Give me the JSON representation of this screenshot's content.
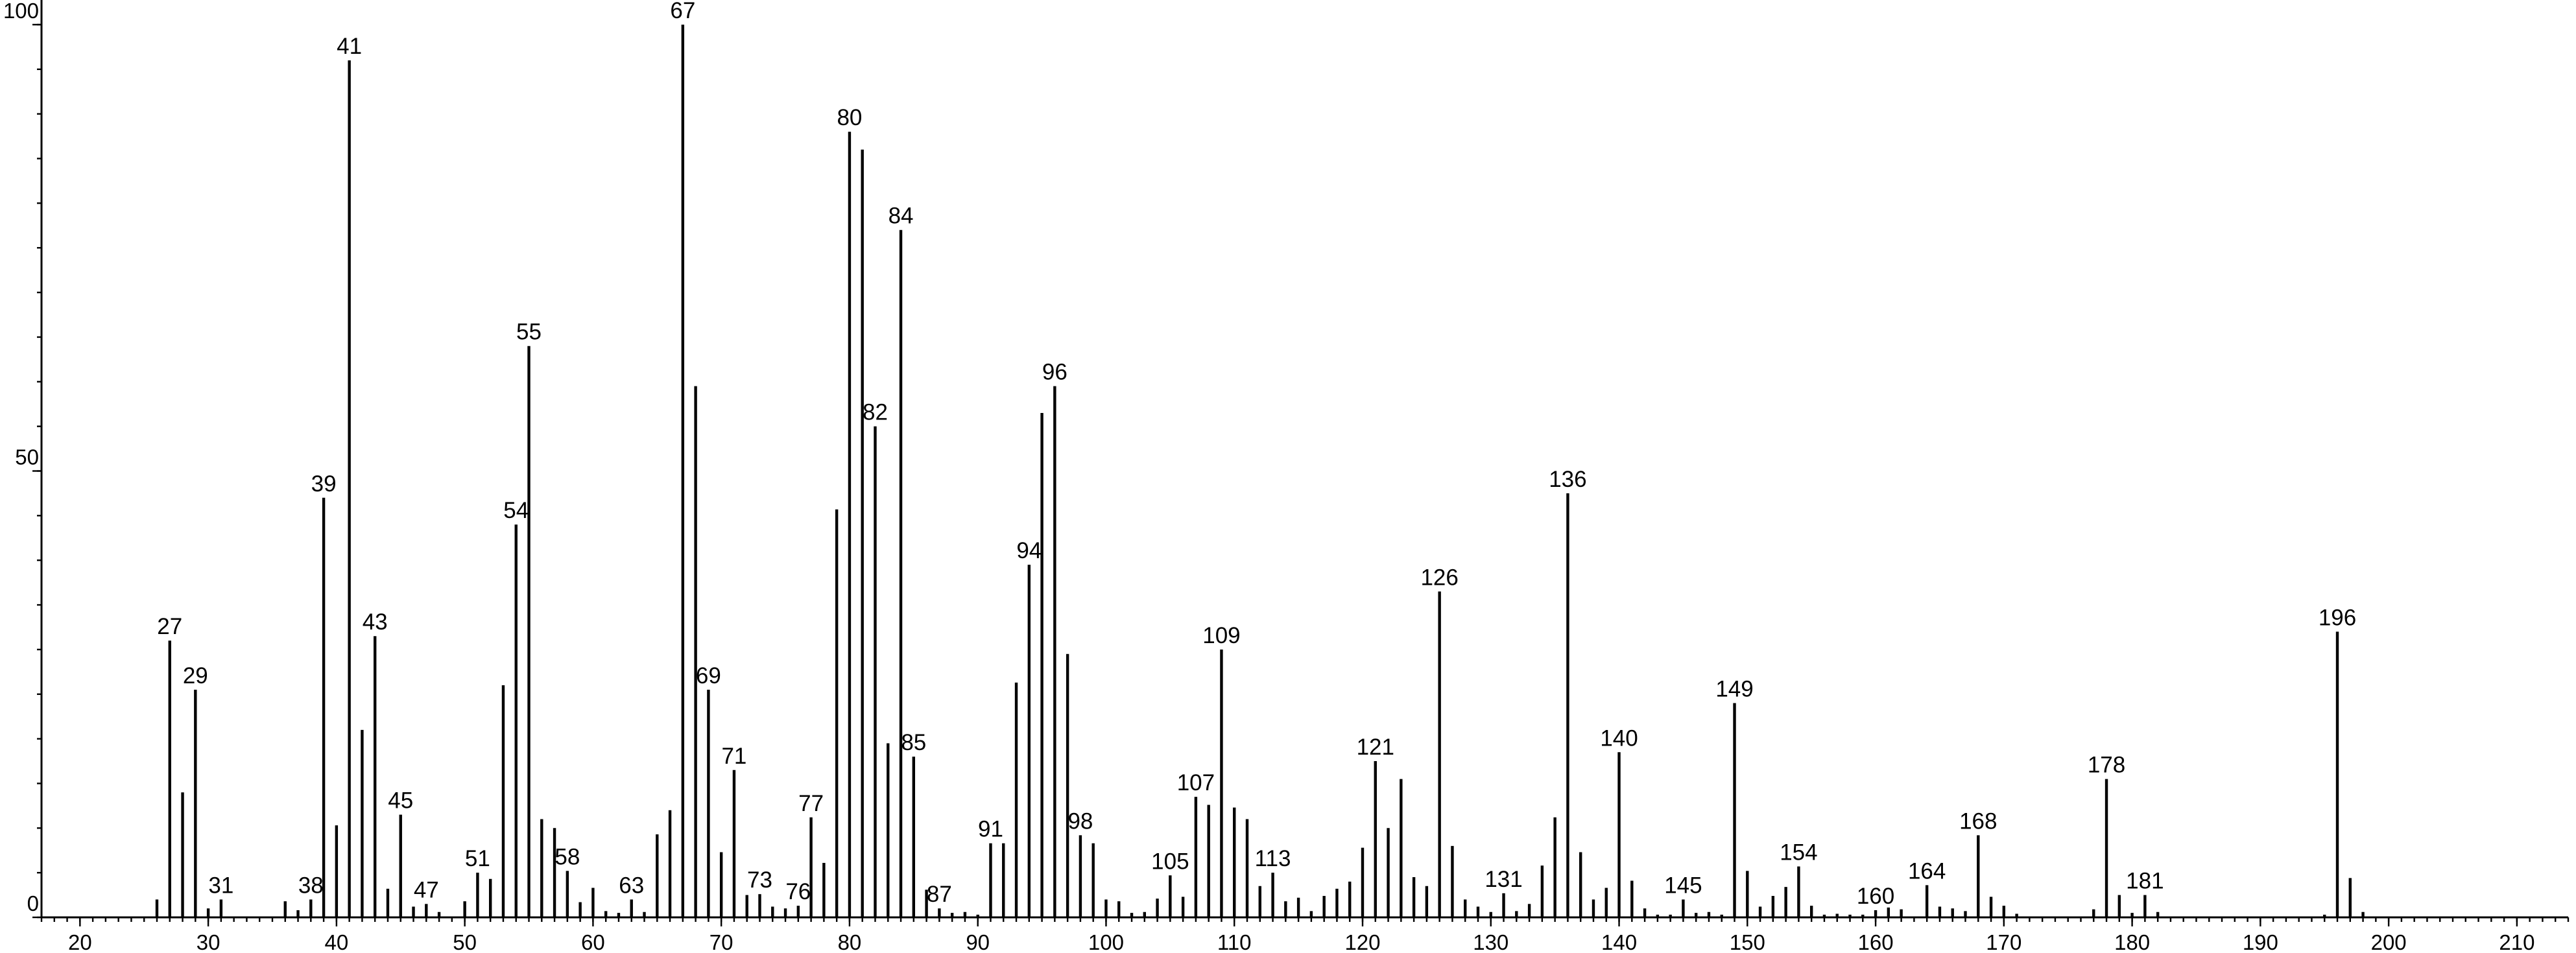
{
  "chart_data": {
    "type": "bar",
    "title": "",
    "xlabel": "",
    "ylabel": "",
    "xlim": [
      17,
      214
    ],
    "ylim": [
      0,
      100
    ],
    "x_ticks": [
      20,
      30,
      40,
      50,
      60,
      70,
      80,
      90,
      100,
      110,
      120,
      130,
      140,
      150,
      160,
      170,
      180,
      190,
      200,
      210
    ],
    "y_ticks": [
      0,
      50,
      100
    ],
    "y_tick_labels": [
      "0",
      "50",
      "100"
    ],
    "grid": false,
    "legend": "none",
    "series": [
      {
        "x": [
          26,
          27,
          28,
          29,
          30,
          31,
          36,
          37,
          38,
          39,
          40,
          41,
          42,
          43,
          44,
          45,
          46,
          47,
          48,
          50,
          51,
          52,
          53,
          54,
          55,
          56,
          57,
          58,
          59,
          60,
          61,
          62,
          63,
          64,
          65,
          66,
          67,
          68,
          69,
          70,
          71,
          72,
          73,
          74,
          75,
          76,
          77,
          78,
          79,
          80,
          81,
          82,
          83,
          84,
          85,
          86,
          87,
          88,
          89,
          90,
          91,
          92,
          93,
          94,
          95,
          96,
          97,
          98,
          99,
          100,
          101,
          102,
          103,
          104,
          105,
          106,
          107,
          108,
          109,
          110,
          111,
          112,
          113,
          114,
          115,
          116,
          117,
          118,
          119,
          120,
          121,
          122,
          123,
          124,
          125,
          126,
          127,
          128,
          129,
          130,
          131,
          132,
          133,
          134,
          135,
          136,
          137,
          138,
          139,
          140,
          141,
          142,
          143,
          144,
          145,
          146,
          147,
          148,
          149,
          150,
          151,
          152,
          153,
          154,
          155,
          156,
          157,
          158,
          159,
          160,
          161,
          162,
          164,
          165,
          166,
          167,
          168,
          169,
          170,
          171,
          177,
          178,
          179,
          180,
          181,
          182,
          195,
          196,
          197,
          198
        ],
        "values": [
          2,
          31,
          14,
          25.5,
          1,
          2,
          1.8,
          0.8,
          2,
          47,
          10.3,
          96,
          21,
          31.5,
          3.2,
          11.5,
          1.2,
          1.5,
          0.6,
          1.8,
          5,
          4.3,
          26,
          44,
          64,
          11,
          10,
          5.2,
          1.7,
          3.3,
          0.7,
          0.5,
          2,
          0.6,
          9.3,
          12,
          100,
          59.5,
          25.5,
          7.3,
          16.5,
          2.5,
          2.6,
          1.2,
          1,
          1.3,
          11.2,
          6.1,
          45.7,
          88,
          86,
          55,
          19.5,
          77,
          18,
          3.1,
          1,
          0.5,
          0.6,
          0.3,
          8.3,
          8.3,
          26.3,
          39.5,
          56.5,
          59.5,
          29.5,
          9.2,
          8.3,
          2,
          1.8,
          0.5,
          0.6,
          2.1,
          4.7,
          2.3,
          13.5,
          12.6,
          30,
          12.3,
          11,
          3.5,
          5,
          1.8,
          2.2,
          0.7,
          2.4,
          3.2,
          4,
          7.8,
          17.5,
          10,
          15.5,
          4.5,
          3.5,
          36.5,
          8,
          2,
          1.2,
          0.6,
          2.7,
          0.7,
          1.5,
          5.8,
          11.2,
          47.5,
          7.3,
          2,
          3.3,
          18.5,
          4.1,
          1,
          0.3,
          0.3,
          2,
          0.5,
          0.6,
          0.3,
          24,
          5.2,
          1.2,
          2.4,
          3.4,
          5.7,
          1.3,
          0.3,
          0.4,
          0.3,
          0.3,
          0.8,
          1.1,
          0.9,
          3.6,
          1.2,
          1,
          0.7,
          9.2,
          2.3,
          1.3,
          0.4,
          0.9,
          15.5,
          2.5,
          0.5,
          2.5,
          0.6,
          0.3,
          32,
          4.4,
          0.6
        ]
      }
    ],
    "labeled_peaks": [
      27,
      29,
      31,
      38,
      39,
      41,
      43,
      45,
      47,
      51,
      54,
      55,
      58,
      63,
      67,
      69,
      71,
      73,
      76,
      77,
      80,
      82,
      84,
      85,
      87,
      91,
      94,
      96,
      98,
      105,
      107,
      109,
      113,
      121,
      126,
      131,
      136,
      140,
      145,
      149,
      154,
      160,
      164,
      168,
      178,
      181,
      196
    ]
  }
}
